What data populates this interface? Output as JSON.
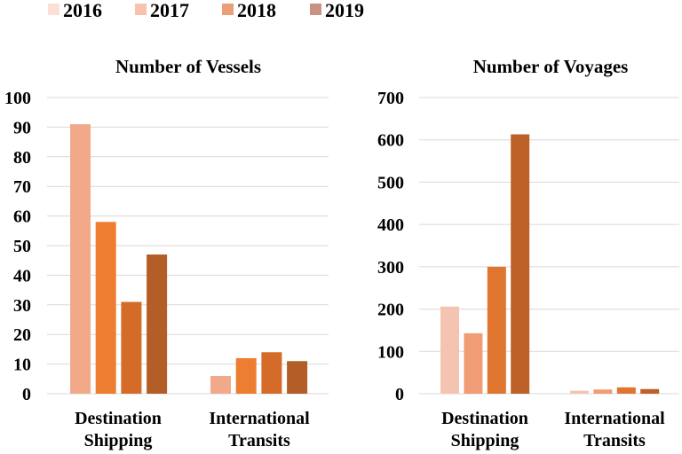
{
  "legend": {
    "items": [
      {
        "label": "2016",
        "color": "#fbe0d6"
      },
      {
        "label": "2017",
        "color": "#f7c3ad"
      },
      {
        "label": "2018",
        "color": "#e9a07a"
      },
      {
        "label": "2019",
        "color": "#c99283"
      }
    ]
  },
  "chart_data": [
    {
      "type": "bar",
      "title": "Number of Vessels",
      "categories": [
        "Destination Shipping",
        "International Transits"
      ],
      "category_lines": [
        [
          "Destination",
          "Shipping"
        ],
        [
          "International",
          "Transits"
        ]
      ],
      "ylim": [
        0,
        100
      ],
      "yticks": [
        0,
        10,
        20,
        30,
        40,
        50,
        60,
        70,
        80,
        90,
        100
      ],
      "grid": true,
      "bar_colors": [
        "#f2a98a",
        "#ed7d31",
        "#d46b28",
        "#b35e27"
      ],
      "series": [
        {
          "name": "2016",
          "values": [
            91,
            6
          ]
        },
        {
          "name": "2017",
          "values": [
            58,
            12
          ]
        },
        {
          "name": "2018",
          "values": [
            31,
            14
          ]
        },
        {
          "name": "2019",
          "values": [
            47,
            11
          ]
        }
      ]
    },
    {
      "type": "bar",
      "title": "Number of Voyages",
      "categories": [
        "Destination Shipping",
        "International Transits"
      ],
      "category_lines": [
        [
          "Destination",
          "Shipping"
        ],
        [
          "International",
          "Transits"
        ]
      ],
      "ylim": [
        0,
        700
      ],
      "yticks": [
        0,
        100,
        200,
        300,
        400,
        500,
        600,
        700
      ],
      "grid": true,
      "bar_colors": [
        "#f5c4b0",
        "#f29c76",
        "#e07530",
        "#bd6128"
      ],
      "series": [
        {
          "name": "2016",
          "values": [
            206,
            7
          ]
        },
        {
          "name": "2017",
          "values": [
            143,
            10
          ]
        },
        {
          "name": "2018",
          "values": [
            300,
            15
          ]
        },
        {
          "name": "2019",
          "values": [
            613,
            11
          ]
        }
      ]
    }
  ]
}
